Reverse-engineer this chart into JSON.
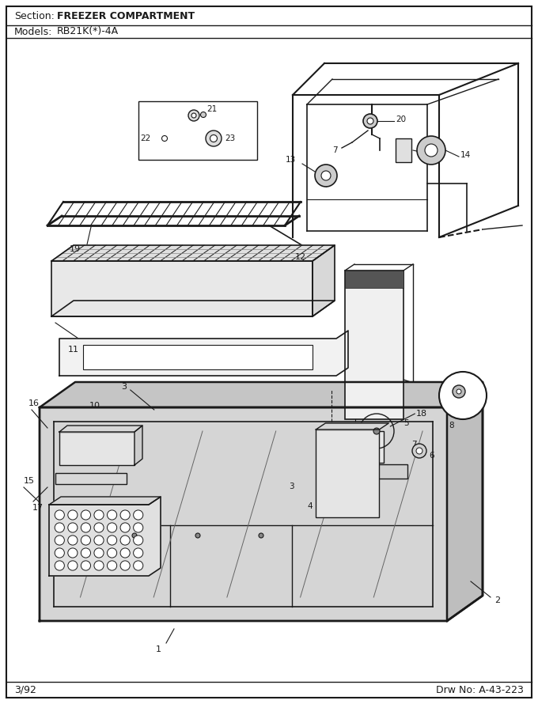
{
  "title_section": "Section:",
  "title_section_bold": "FREEZER COMPARTMENT",
  "title_models": "Models:",
  "title_models_bold": "RB21K(*)-4A",
  "footer_left": "3/92",
  "footer_right": "Drw No: A-43-223",
  "bg_color": "#ffffff",
  "line_color": "#1a1a1a",
  "text_color": "#1a1a1a",
  "fig_width": 6.8,
  "fig_height": 8.9,
  "dpi": 100
}
